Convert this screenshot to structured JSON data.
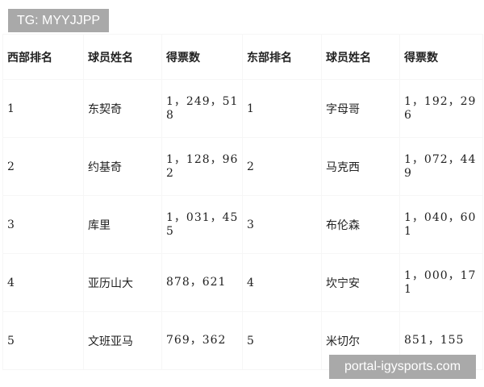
{
  "watermarks": {
    "top": "TG: MYYJJPP",
    "bottom": "portal-igysports.com"
  },
  "table": {
    "headers": [
      "西部排名",
      "球员姓名",
      "得票数",
      "东部排名",
      "球员姓名",
      "得票数"
    ],
    "rows": [
      [
        "1",
        "东契奇",
        "1，249，518",
        "1",
        "字母哥",
        "1，192，296"
      ],
      [
        "2",
        "约基奇",
        "1，128，962",
        "2",
        "马克西",
        "1，072，449"
      ],
      [
        "3",
        "库里",
        "1，031，455",
        "3",
        "布伦森",
        "1，040，601"
      ],
      [
        "4",
        "亚历山大",
        "878，621",
        "4",
        "坎宁安",
        "1，000，171"
      ],
      [
        "5",
        "文班亚马",
        "769，362",
        "5",
        "米切尔",
        "851，155"
      ]
    ]
  }
}
